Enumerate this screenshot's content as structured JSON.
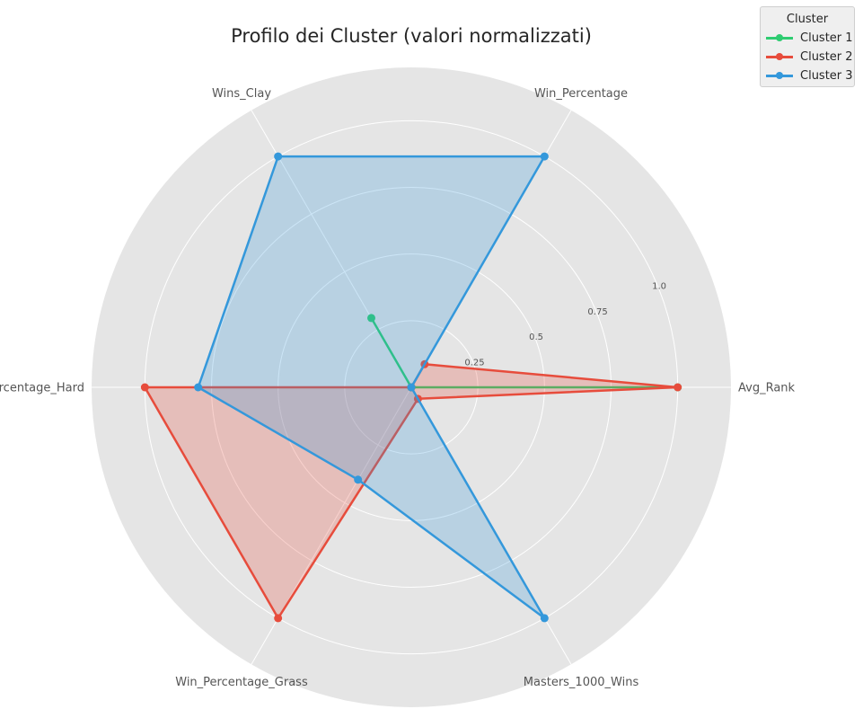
{
  "chart_data": {
    "type": "radar",
    "title": "Profilo dei Cluster (valori normalizzati)",
    "axes": [
      "Avg_Rank",
      "Win_Percentage",
      "Wins_Clay",
      "Win_Percentage_Hard",
      "Win_Percentage_Grass",
      "Masters_1000_Wins"
    ],
    "radial_ticks": [
      0.25,
      0.5,
      0.75,
      1.0
    ],
    "radial_tick_labels": [
      "0.25",
      "0.5",
      "0.75",
      "1.0"
    ],
    "rlim": [
      0,
      1.2
    ],
    "grid": true,
    "legend": {
      "title": "Cluster",
      "placement": "top-right"
    },
    "series": [
      {
        "name": "Cluster 1",
        "color": "#2ecc71",
        "values": [
          1.0,
          0.0,
          0.3,
          0.0,
          0.0,
          0.0
        ]
      },
      {
        "name": "Cluster 2",
        "color": "#e74c3c",
        "values": [
          1.0,
          0.1,
          0.0,
          1.0,
          1.0,
          0.05
        ]
      },
      {
        "name": "Cluster 3",
        "color": "#3498db",
        "values": [
          0.0,
          1.0,
          1.0,
          0.8,
          0.4,
          1.0
        ]
      }
    ]
  }
}
